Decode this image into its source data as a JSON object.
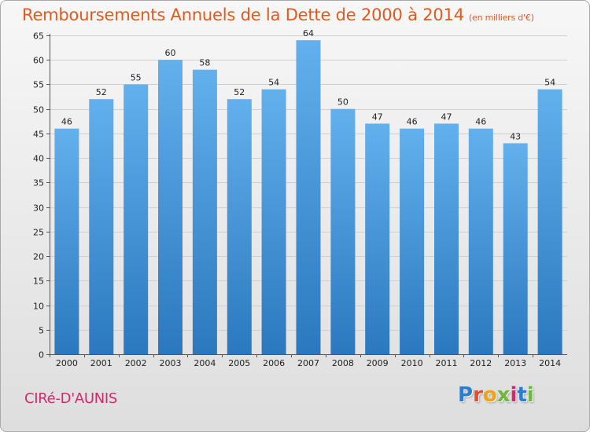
{
  "header": {
    "title": "Remboursements Annuels de la Dette de 2000 à 2014",
    "unit": "(en milliers d'€)"
  },
  "footer": {
    "commune": "CIRé-D'AUNIS",
    "brand": "Proxiti",
    "brand_colors": [
      "#2a7bd2",
      "#e84a2a",
      "#f2a30f",
      "#6fb83c",
      "#d4286e",
      "#2a7bd2",
      "#6fb83c"
    ]
  },
  "colors": {
    "bar_top": "#62b0ec",
    "bar_bottom": "#2b78bf",
    "title": "#e05a20",
    "commune": "#d4286e"
  },
  "chart_data": {
    "type": "bar",
    "categories": [
      "2000",
      "2001",
      "2002",
      "2003",
      "2004",
      "2005",
      "2006",
      "2007",
      "2008",
      "2009",
      "2010",
      "2011",
      "2012",
      "2013",
      "2014"
    ],
    "values": [
      46,
      52,
      55,
      60,
      58,
      52,
      54,
      64,
      50,
      47,
      46,
      47,
      46,
      43,
      54
    ],
    "ylim": [
      0,
      65
    ],
    "yticks": [
      0,
      5,
      10,
      15,
      20,
      25,
      30,
      35,
      40,
      45,
      50,
      55,
      60,
      65
    ],
    "grid": true,
    "data_labels": true
  }
}
